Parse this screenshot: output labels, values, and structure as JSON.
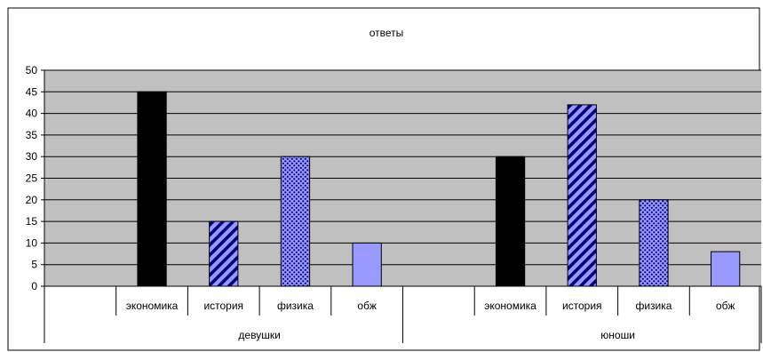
{
  "chart_data": {
    "type": "bar",
    "title": "ответы",
    "groups": [
      "девушки",
      "юноши"
    ],
    "categories": [
      "экономика",
      "история",
      "физика",
      "обж"
    ],
    "series": [
      {
        "values": [
          45,
          15,
          30,
          10
        ]
      },
      {
        "values": [
          30,
          42,
          20,
          8
        ]
      }
    ],
    "ylim": [
      0,
      50
    ],
    "yticks": [
      0,
      5,
      10,
      15,
      20,
      25,
      30,
      35,
      40,
      45,
      50
    ],
    "grid": true,
    "plot_background": "#c0c0c0",
    "bar_styles": [
      {
        "fill": "#000000",
        "pattern": "solid"
      },
      {
        "fill": "#9999ff",
        "pattern": "diagonal-stripes"
      },
      {
        "fill": "#9999ff",
        "pattern": "dots"
      },
      {
        "fill": "#9999ff",
        "pattern": "solid"
      }
    ]
  }
}
